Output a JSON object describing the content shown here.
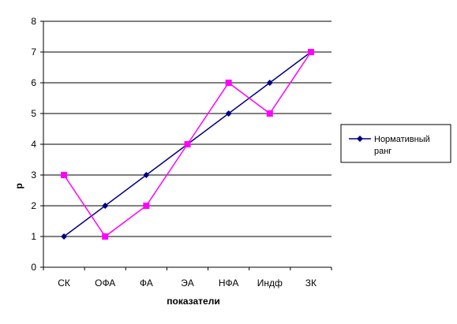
{
  "chart_data": {
    "type": "line",
    "categories": [
      "СК",
      "ОФА",
      "ФА",
      "ЭА",
      "НФА",
      "Индф",
      "ЗК"
    ],
    "xlabel": "показатели",
    "ylabel": "р",
    "ylim": [
      0,
      8
    ],
    "yticks": [
      0,
      1,
      2,
      3,
      4,
      5,
      6,
      7,
      8
    ],
    "grid": true,
    "legend_position": "right",
    "series": [
      {
        "name": "Нормативный ранг",
        "values": [
          1,
          2,
          3,
          4,
          5,
          6,
          7
        ],
        "color": "#000080",
        "marker": "diamond",
        "in_legend": true
      },
      {
        "name": "",
        "values": [
          3,
          1,
          2,
          4,
          6,
          5,
          7
        ],
        "color": "#FF00FF",
        "marker": "square",
        "in_legend": false
      }
    ]
  },
  "legend": {
    "line1": "Нормативный",
    "line2": "ранг"
  }
}
